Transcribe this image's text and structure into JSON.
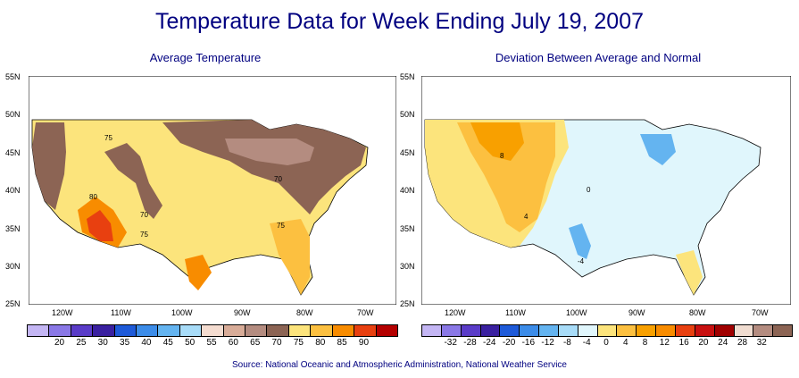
{
  "title": "Temperature Data for Week Ending July 19, 2007",
  "source": "Source:  National Oceanic and Atmospheric Administration, National Weather Service",
  "lat_labels": [
    "55N",
    "50N",
    "45N",
    "40N",
    "35N",
    "30N",
    "25N"
  ],
  "lon_labels": [
    "120W",
    "110W",
    "100W",
    "90W",
    "80W",
    "70W"
  ],
  "left_map": {
    "title": "Average Temperature",
    "contour_labels": [
      "75",
      "80",
      "70",
      "75",
      "70",
      "75"
    ],
    "legend_colors": [
      "#c4b6f4",
      "#8a78e6",
      "#5a3cc8",
      "#3a20a0",
      "#1e5ad8",
      "#3c8ce8",
      "#64b4f0",
      "#a8dcf8",
      "#f4dcd0",
      "#d8ac98",
      "#b48c80",
      "#8c6454",
      "#fce47c",
      "#fcc040",
      "#f88c00",
      "#e84010",
      "#b40000"
    ],
    "legend_ticks": [
      "20",
      "25",
      "30",
      "35",
      "40",
      "45",
      "50",
      "55",
      "60",
      "65",
      "70",
      "75",
      "80",
      "85",
      "90"
    ]
  },
  "right_map": {
    "title": "Deviation Between Average and Normal",
    "contour_labels": [
      "8",
      "4",
      "0",
      "-4"
    ],
    "legend_colors": [
      "#c4b6f4",
      "#8a78e6",
      "#5a3cc8",
      "#3a20a0",
      "#1e5ad8",
      "#3c8ce8",
      "#64b4f0",
      "#a8dcf8",
      "#e0f6fc",
      "#fce47c",
      "#fcc040",
      "#f8a000",
      "#f88c00",
      "#e84010",
      "#c81010",
      "#a00000",
      "#f0dcd0",
      "#b48c80",
      "#8c6454"
    ],
    "legend_ticks": [
      "-32",
      "-28",
      "-24",
      "-20",
      "-16",
      "-12",
      "-8",
      "-4",
      "0",
      "4",
      "8",
      "12",
      "16",
      "20",
      "24",
      "28",
      "32"
    ]
  }
}
